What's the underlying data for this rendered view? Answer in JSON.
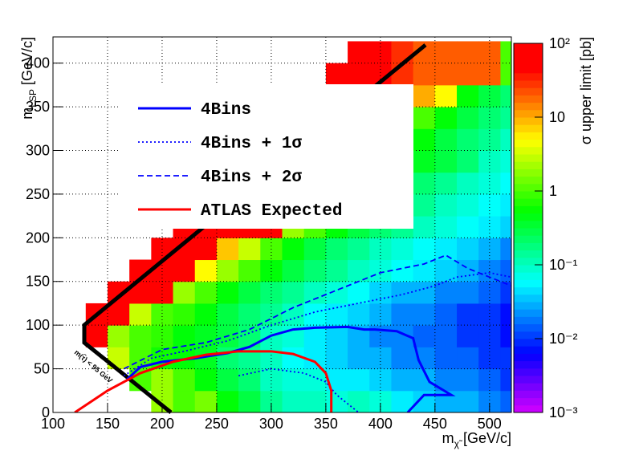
{
  "chart_data": {
    "type": "heatmap",
    "x_label": {
      "symbol": "m",
      "subscript": "χ̃",
      "unit": "[GeV/c]"
    },
    "y_label": {
      "symbol": "m",
      "subscript": "LSP",
      "unit": "[GeV/c]"
    },
    "z_label": "σ upper limit [pb]",
    "annotation": "m(τ̃) < 95 GeV",
    "xlim": [
      100,
      520
    ],
    "ylim": [
      0,
      430
    ],
    "xticks": [
      100,
      150,
      200,
      250,
      300,
      350,
      400,
      450,
      500
    ],
    "yticks": [
      0,
      50,
      100,
      150,
      200,
      250,
      300,
      350,
      400
    ],
    "zlim": [
      0.001,
      100
    ],
    "z_log": true,
    "zticks": [
      {
        "value": 0.001,
        "label": "10⁻³"
      },
      {
        "value": 0.01,
        "label": "10⁻²"
      },
      {
        "value": 0.1,
        "label": "10⁻¹"
      },
      1,
      10,
      {
        "value": 100,
        "label": "10²"
      }
    ],
    "grid": true,
    "legend": "upper left",
    "xbins": [
      130,
      150,
      170,
      190,
      210,
      230,
      250,
      270,
      290,
      310,
      330,
      350,
      370,
      390,
      410,
      430,
      450,
      470,
      490,
      510,
      530
    ],
    "ybins": [
      0,
      25,
      50,
      75,
      100,
      125,
      150,
      175,
      200,
      225,
      250,
      275,
      300,
      325,
      350,
      375,
      400,
      425
    ],
    "z": [
      [
        null,
        null,
        null,
        2,
        1,
        1.5,
        0.5,
        0.3,
        0.15,
        0.1,
        0.1,
        0.08,
        0.1,
        0.08,
        0.05,
        0.04,
        0.03,
        0.03,
        0.02,
        0.015
      ],
      [
        null,
        null,
        1,
        2,
        1,
        0.5,
        0.3,
        0.2,
        0.1,
        0.08,
        0.08,
        0.05,
        0.05,
        0.04,
        0.03,
        0.03,
        0.02,
        0.02,
        0.015,
        0.01
      ],
      [
        null,
        3,
        1,
        0.6,
        0.5,
        0.4,
        0.2,
        0.15,
        0.1,
        0.06,
        0.05,
        0.04,
        0.03,
        0.03,
        0.02,
        0.02,
        0.015,
        0.015,
        0.01,
        0.01
      ],
      [
        50,
        2,
        1,
        0.8,
        0.5,
        0.4,
        0.3,
        0.2,
        0.1,
        0.08,
        0.05,
        0.04,
        0.03,
        0.02,
        0.02,
        0.015,
        0.015,
        0.01,
        0.01,
        0.007
      ],
      [
        50,
        50,
        3,
        1,
        0.8,
        0.5,
        0.3,
        0.2,
        0.15,
        0.1,
        0.06,
        0.05,
        0.04,
        0.03,
        0.02,
        0.02,
        0.015,
        0.01,
        0.01,
        0.007
      ],
      [
        null,
        50,
        50,
        50,
        2,
        1,
        0.5,
        0.3,
        0.2,
        0.15,
        0.1,
        0.08,
        0.06,
        0.04,
        0.03,
        0.03,
        0.02,
        0.02,
        0.015,
        0.01
      ],
      [
        null,
        null,
        50,
        50,
        50,
        5,
        2,
        1,
        0.5,
        0.3,
        0.2,
        0.15,
        0.1,
        0.08,
        0.06,
        0.05,
        0.04,
        0.03,
        0.02,
        0.015
      ],
      [
        null,
        null,
        null,
        50,
        50,
        50,
        8,
        3,
        1,
        0.5,
        0.3,
        0.2,
        0.15,
        0.1,
        0.08,
        0.06,
        0.05,
        0.04,
        0.03,
        0.02
      ],
      [
        null,
        null,
        null,
        null,
        50,
        50,
        50,
        50,
        50,
        2,
        1,
        0.5,
        0.3,
        0.2,
        0.15,
        0.1,
        0.08,
        0.06,
        0.05,
        0.04
      ],
      [
        null,
        null,
        null,
        null,
        null,
        50,
        50,
        50,
        50,
        10,
        3,
        1,
        0.5,
        0.3,
        0.2,
        0.15,
        0.1,
        0.08,
        0.06,
        0.05
      ],
      [
        null,
        null,
        null,
        null,
        null,
        null,
        50,
        50,
        50,
        50,
        10,
        2,
        1,
        0.5,
        0.3,
        0.2,
        0.15,
        0.1,
        0.08,
        0.06
      ],
      [
        null,
        null,
        null,
        null,
        null,
        null,
        null,
        50,
        50,
        50,
        50,
        10,
        2,
        1,
        0.5,
        0.4,
        0.3,
        0.2,
        0.1,
        0.08
      ],
      [
        null,
        null,
        null,
        null,
        null,
        null,
        null,
        null,
        50,
        50,
        50,
        50,
        10,
        3,
        1,
        0.5,
        0.3,
        0.2,
        0.15,
        0.1
      ],
      [
        null,
        null,
        null,
        null,
        null,
        null,
        null,
        null,
        null,
        50,
        50,
        50,
        50,
        20,
        5,
        1,
        0.5,
        0.3,
        0.2,
        0.15
      ],
      [
        null,
        null,
        null,
        null,
        null,
        null,
        null,
        null,
        null,
        null,
        50,
        50,
        50,
        50,
        20,
        10,
        5,
        0.5,
        0.3,
        0.2
      ],
      [
        null,
        null,
        null,
        null,
        null,
        null,
        null,
        null,
        null,
        null,
        null,
        50,
        50,
        50,
        30,
        20,
        20,
        20,
        20,
        1
      ],
      [
        null,
        null,
        null,
        null,
        null,
        null,
        null,
        null,
        null,
        null,
        null,
        null,
        50,
        50,
        30,
        20,
        20,
        20,
        20,
        1
      ]
    ],
    "series": [
      {
        "name": "4Bins",
        "color": "#0000ff",
        "style": "solid",
        "x": [
          168,
          180,
          200,
          230,
          260,
          280,
          300,
          320,
          340,
          370,
          385,
          395,
          415,
          430,
          435,
          445,
          465,
          440,
          425
        ],
        "y": [
          38,
          52,
          58,
          62,
          68,
          75,
          88,
          95,
          97,
          98,
          95,
          95,
          93,
          85,
          60,
          35,
          20,
          20,
          0
        ]
      },
      {
        "name": "4Bins + 1σ",
        "color": "#0000ff",
        "style": "dotted",
        "x": [
          165,
          190,
          220,
          260,
          300,
          340,
          380,
          420,
          450,
          470,
          500,
          520,
          null,
          270,
          300,
          330,
          350,
          360,
          380
        ],
        "y": [
          42,
          62,
          70,
          82,
          100,
          115,
          125,
          135,
          145,
          155,
          160,
          155,
          null,
          42,
          50,
          45,
          35,
          20,
          0
        ]
      },
      {
        "name": "4Bins + 2σ",
        "color": "#0000ff",
        "style": "dashed",
        "x": [
          165,
          200,
          240,
          280,
          320,
          360,
          400,
          440,
          460,
          480,
          500,
          520
        ],
        "y": [
          50,
          72,
          80,
          95,
          120,
          140,
          160,
          170,
          180,
          165,
          155,
          145
        ]
      },
      {
        "name": "ATLAS Expected",
        "color": "#ff0000",
        "style": "solid",
        "x": [
          120,
          150,
          180,
          210,
          240,
          270,
          300,
          320,
          340,
          350,
          355,
          355
        ],
        "y": [
          0,
          25,
          45,
          58,
          66,
          70,
          70,
          67,
          58,
          45,
          25,
          0
        ]
      }
    ]
  }
}
